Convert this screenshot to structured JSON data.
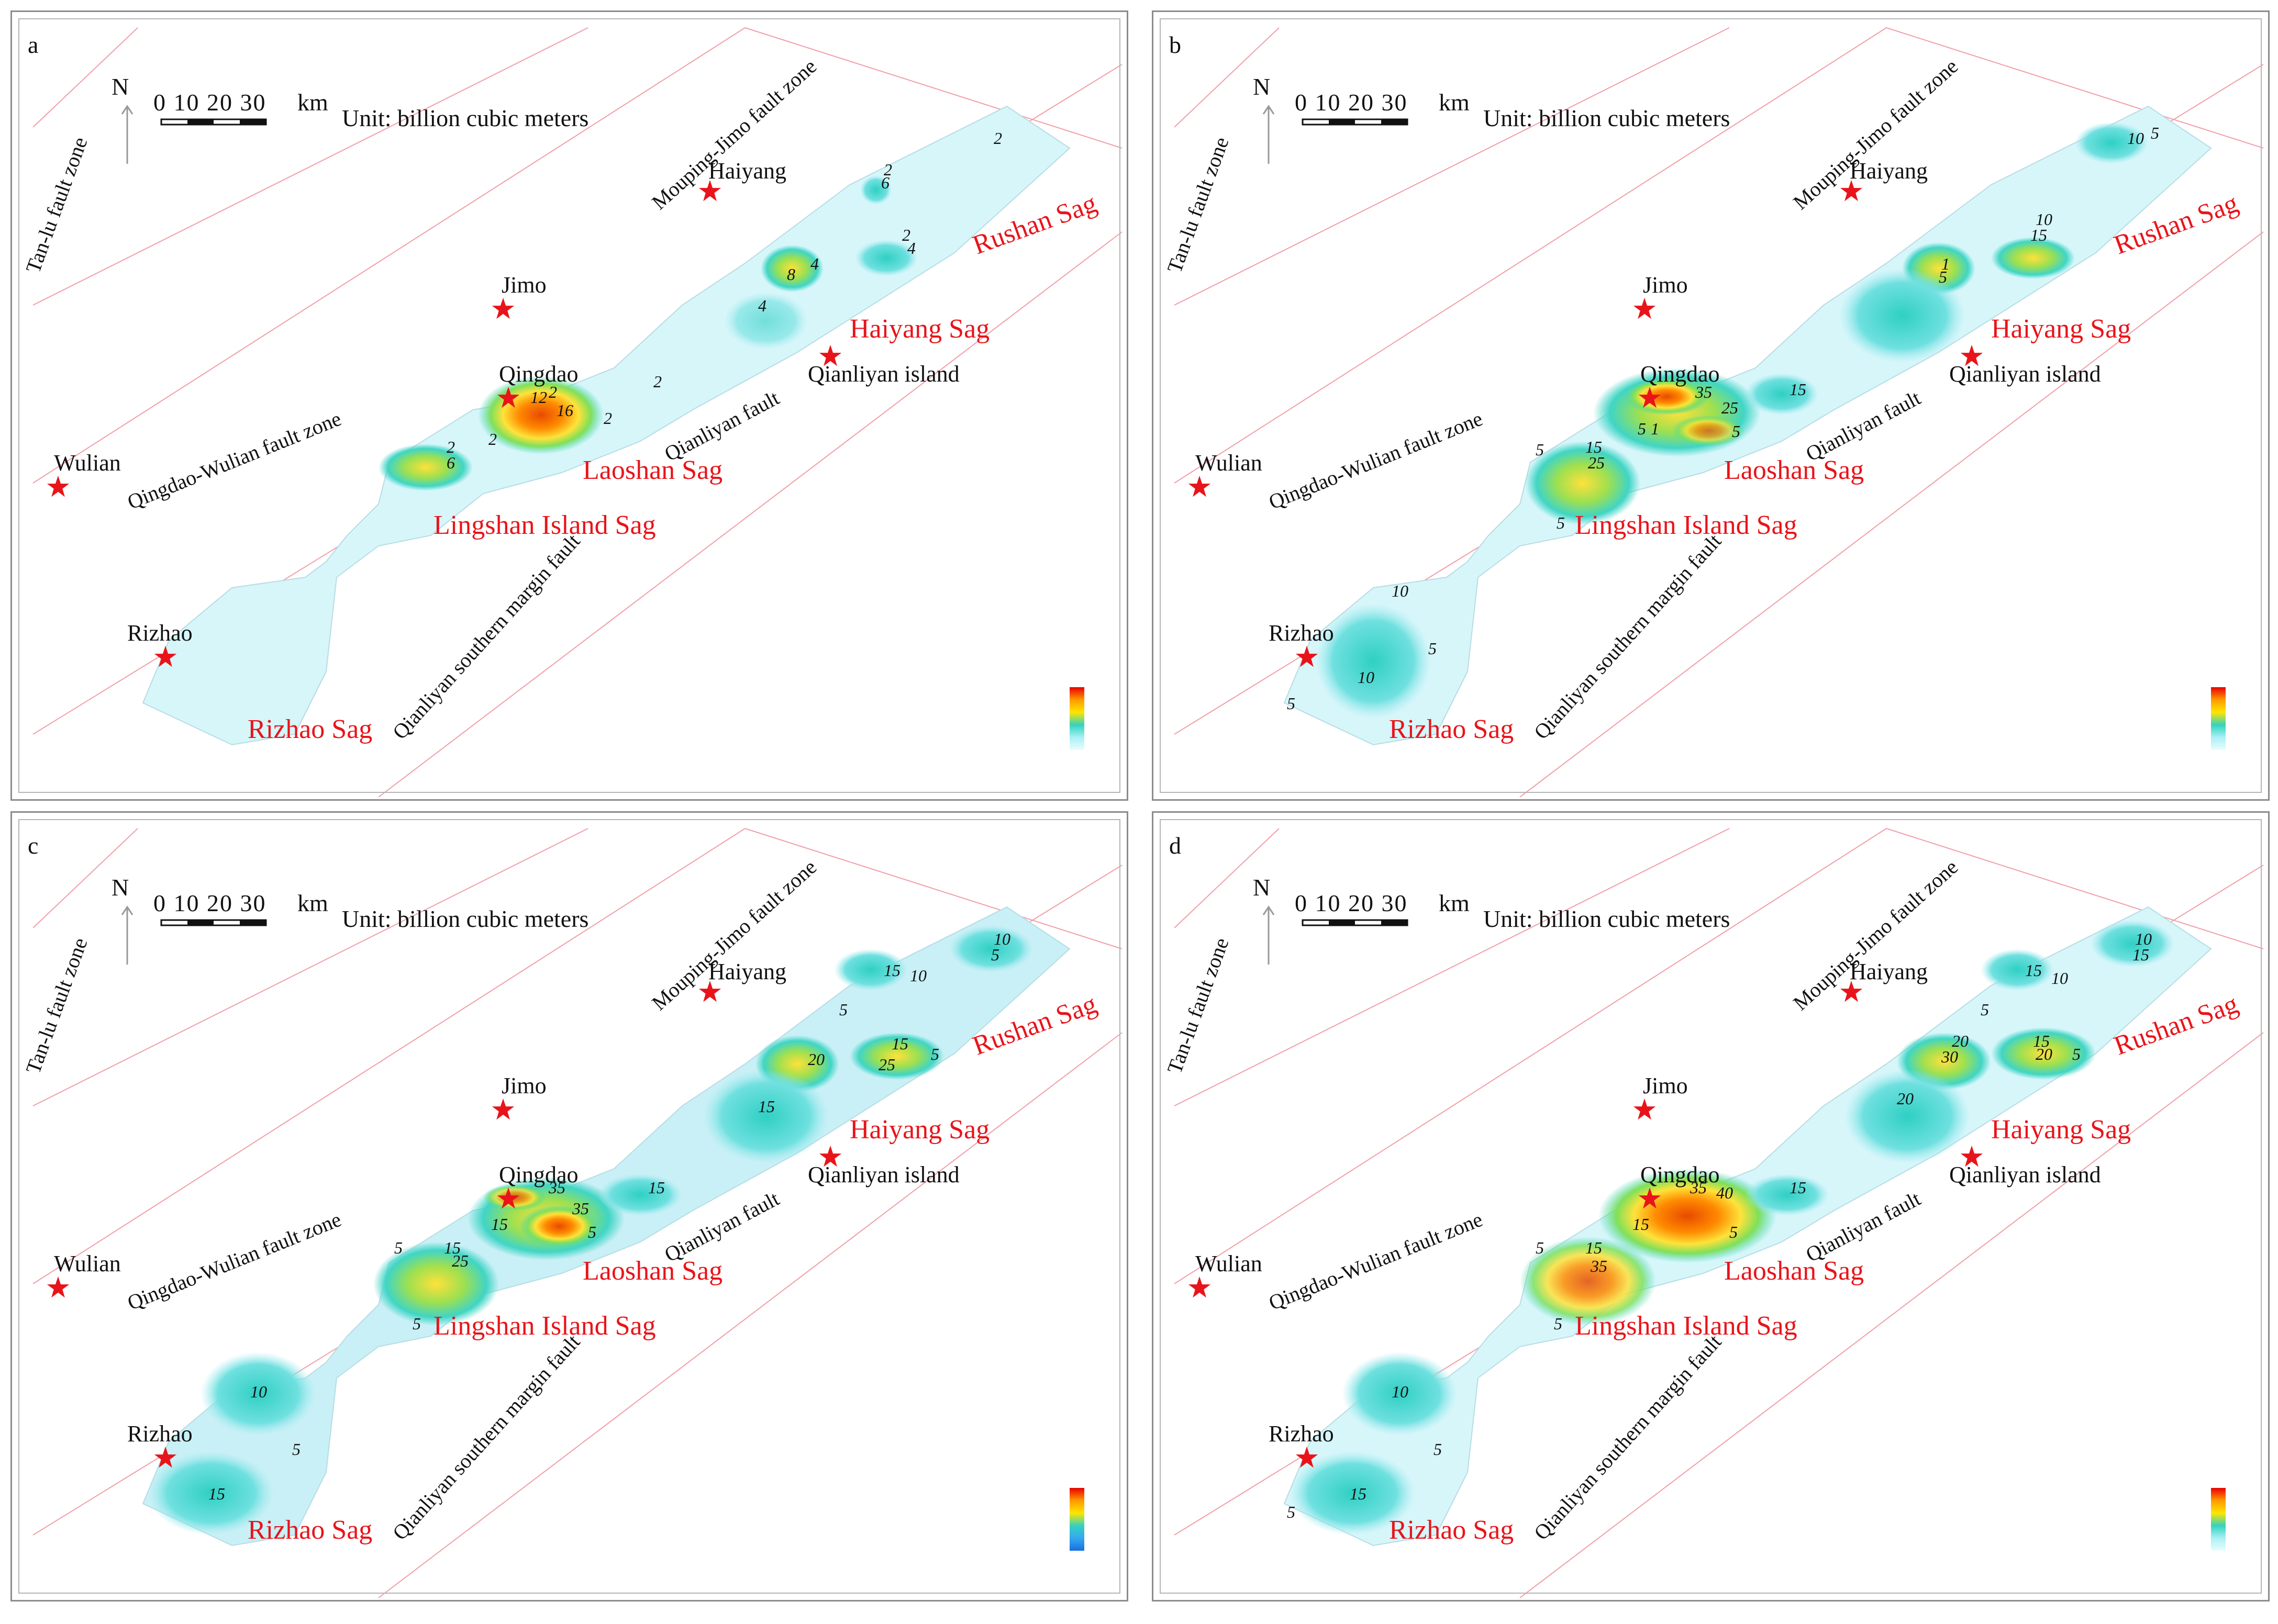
{
  "common": {
    "north": "N",
    "scale_numbers": "0 10 20 30",
    "scale_unit": "km",
    "unit": "Unit: billion cubic meters",
    "cities": {
      "haiyang": "Haiyang",
      "jimo": "Jimo",
      "qingdao": "Qingdao",
      "qianliyan": "Qianliyan island",
      "wulian": "Wulian",
      "rizhao": "Rizhao"
    },
    "sags": {
      "rushan": "Rushan Sag",
      "haiyang": "Haiyang Sag",
      "laoshan": "Laoshan Sag",
      "lingshan": "Lingshan Island Sag",
      "rizhao": "Rizhao Sag"
    },
    "faults": {
      "tanlu": "Tan-lu fault zone",
      "mouping": "Mouping-Jimo fault zone",
      "qingdao_wulian": "Qingdao-Wulian fault zone",
      "qianliyan_fault": "Qianliyan fault",
      "qianliyan_southern": "Qianliyan southern margin fault"
    },
    "colors": {
      "sag_label": "#e8141a",
      "star": "#e8141a",
      "low": "#d8f6fa",
      "mid": "#33d4c8",
      "high": "#ff6a00"
    }
  },
  "panels": [
    {
      "letter": "a",
      "contours": {
        "rushan_top": "2",
        "haiyang_n1": "2",
        "haiyang_n2": "6",
        "haiyang_e1": "2",
        "haiyang_e2": "4",
        "haiyang_c1": "8",
        "haiyang_c2": "4",
        "haiyang_sw": "4",
        "laoshan_n": "2",
        "qingdao_1": "2",
        "qingdao_2": "12",
        "qingdao_3": "16",
        "qingdao_4": "2",
        "qingdao_5": "2",
        "lingshan_1": "2",
        "lingshan_2": "6"
      }
    },
    {
      "letter": "b",
      "contours": {
        "rushan_top": "10",
        "rushan_top2": "5",
        "haiyang_e1": "10",
        "haiyang_e2": "15",
        "haiyang_c1": "1",
        "haiyang_c2": "5",
        "laoshan_e": "15",
        "qingdao_1": "35",
        "qingdao_2": "25",
        "qingdao_3": "5",
        "qingdao_4": "5",
        "qingdao_5": "1",
        "lingshan_1": "5",
        "lingshan_2": "15",
        "lingshan_3": "25",
        "lingshan_4": "5",
        "rizhao_1": "10",
        "rizhao_2": "5",
        "rizhao_3": "10",
        "rizhao_4": "5"
      }
    },
    {
      "letter": "c",
      "contours": {
        "rushan_top": "10",
        "rushan_top2": "5",
        "haiyang_n1": "15",
        "haiyang_n2": "10",
        "haiyang_m": "5",
        "haiyang_c1": "20",
        "haiyang_c2": "15",
        "haiyang_c3": "25",
        "haiyang_c4": "5",
        "haiyang_sw": "15",
        "laoshan_e": "15",
        "qingdao_1": "35",
        "qingdao_2": "35",
        "qingdao_3": "15",
        "qingdao_4": "5",
        "lingshan_1": "5",
        "lingshan_2": "15",
        "lingshan_3": "25",
        "lingshan_4": "5",
        "rizhao_1": "10",
        "rizhao_2": "5",
        "rizhao_3": "15"
      }
    },
    {
      "letter": "d",
      "contours": {
        "rushan_top": "10",
        "rushan_top2": "15",
        "haiyang_n1": "15",
        "haiyang_n2": "10",
        "haiyang_m": "5",
        "haiyang_c1": "20",
        "haiyang_c2": "15",
        "haiyang_c3": "20",
        "haiyang_c4": "30",
        "haiyang_c5": "5",
        "haiyang_sw": "20",
        "laoshan_e": "15",
        "qingdao_1": "35",
        "qingdao_2": "40",
        "qingdao_3": "15",
        "qingdao_4": "5",
        "lingshan_1": "5",
        "lingshan_2": "15",
        "lingshan_3": "35",
        "lingshan_4": "5",
        "rizhao_1": "10",
        "rizhao_2": "5",
        "rizhao_3": "15",
        "rizhao_4": "5"
      }
    }
  ]
}
